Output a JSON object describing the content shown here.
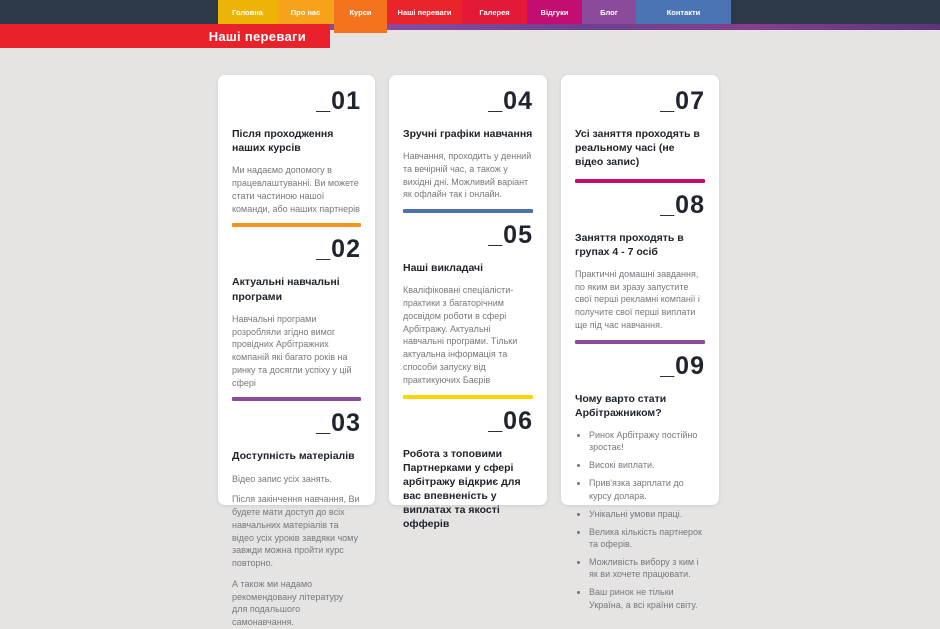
{
  "nav": {
    "items": [
      {
        "label": "Головна",
        "color": "#ecb505",
        "active": false
      },
      {
        "label": "Про нас",
        "color": "#f7a21b",
        "active": false
      },
      {
        "label": "Курси",
        "color": "#f4731f",
        "active": true
      },
      {
        "label": "Наші переваги",
        "color": "#e9252b",
        "active": false
      },
      {
        "label": "Галерея",
        "color": "#e41937",
        "active": false
      },
      {
        "label": "Відгуки",
        "color": "#c30d71",
        "active": false
      },
      {
        "label": "Блог",
        "color": "#8c4a9d",
        "active": false
      },
      {
        "label": "Контакти",
        "color": "#4a74b4",
        "active": false
      }
    ],
    "bg_color": "#2e3947"
  },
  "header": {
    "page_heading": "Наші переваги",
    "badge_color": "#e8212b"
  },
  "columns": [
    {
      "sections": [
        {
          "number": "_01",
          "title": "Після проходження наших курсів",
          "paragraphs": [
            "Ми надаємо допомогу в працевлаштуванні. Ви можете стати частиною нашої команди, або наших партнерів"
          ],
          "bar_color": "#f6921e"
        },
        {
          "number": "_02",
          "title": "Актуальні навчальні програми",
          "paragraphs": [
            "Навчальні програми розробляли згідно вимог провідних Арбітражних компаній які багато років на ринку та досягли успіху у цій сфері"
          ],
          "bar_color": "#8b4a9c"
        },
        {
          "number": "_03",
          "title": "Доступність матеріалів",
          "paragraphs": [
            "Відео запис усіх занять.",
            "Після закінчення навчання, Ви будете мати доступ до всіх навчальних матеріалів та відео усіх уроків завдяки чому завжди можна пройти курс повторно.",
            "А також ми надамо рекомендовану літературу для подальшого самонавчання."
          ],
          "bar_color": null
        }
      ]
    },
    {
      "sections": [
        {
          "number": "_04",
          "title": "Зручні графіки навчання",
          "paragraphs": [
            "Навчання, проходить у денний та вечірній час, а також у вихідні дні. Можливий варіант як офлайн так і онлайн."
          ],
          "bar_color": "#4973ad"
        },
        {
          "number": "_05",
          "title": "Наші викладачі",
          "paragraphs": [
            "Кваліфіковані спеціалісти-практики з багаторічним досвідом роботи в сфері Арбітражу. Актуальні навчальні програми. Тільки актуальна інформація та способи запуску від практикуючих Баєрів"
          ],
          "bar_color": "#ffd400"
        },
        {
          "number": "_06",
          "title": "Робота з топовими Партнерками у сфері арбітражу відкриє для вас впевненість у виплатах та якості офферів",
          "paragraphs": [],
          "bar_color": null
        }
      ]
    },
    {
      "sections": [
        {
          "number": "_07",
          "title": "Усі заняття проходять в реальному часі (не відео запис)",
          "paragraphs": [],
          "bar_color": "#c30d71"
        },
        {
          "number": "_08",
          "title": "Заняття проходять в групах 4 - 7 осіб",
          "paragraphs": [
            "Практичні домашні завдання, по яким ви зразу запустите свої перші рекламні компанії і получите свої перші виплати ще під час навчання."
          ],
          "bar_color": "#8b4a9c"
        },
        {
          "number": "_09",
          "title": "Чому варто стати Арбітражником?",
          "paragraphs": [],
          "bullets": [
            "Ринок Арбітражу постійно зростає!",
            "Високі виплати.",
            "Прив'язка зарплати до курсу долара.",
            "Унікальні умови праці.",
            "Велика кількість партнерок та оферів.",
            "Можливість вибору з ким і як ви хочете працювати.",
            "Ваш ринок не тільки Україна, а всі країни світу."
          ],
          "bar_color": null
        }
      ]
    }
  ]
}
